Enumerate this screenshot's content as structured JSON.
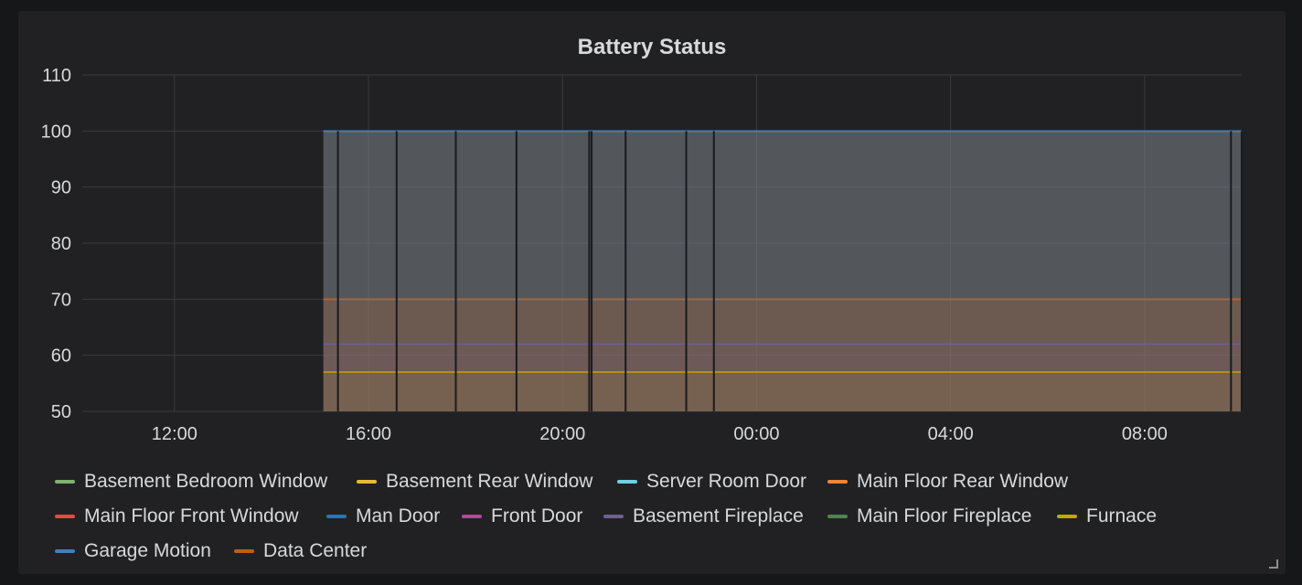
{
  "panel": {
    "title": "Battery Status"
  },
  "chart_data": {
    "type": "area",
    "title": "Battery Status",
    "xlabel": "",
    "ylabel": "",
    "x_ticks": [
      "12:00",
      "16:00",
      "20:00",
      "00:00",
      "04:00",
      "08:00"
    ],
    "x_tick_hours": [
      12,
      16,
      20,
      24,
      28,
      32
    ],
    "x_range_hours": [
      10.1,
      34.0
    ],
    "data_start_hour": 15.07,
    "ylim": [
      50,
      110
    ],
    "y_ticks": [
      50,
      60,
      70,
      80,
      90,
      100,
      110
    ],
    "grid": true,
    "legend_position": "bottom",
    "gaps_hours": [
      15.37,
      16.58,
      17.8,
      19.05,
      20.55,
      20.6,
      21.3,
      22.55,
      23.12,
      33.78,
      34.0
    ],
    "series": [
      {
        "name": "Basement Bedroom Window",
        "color": "#7eb26d",
        "value": 100
      },
      {
        "name": "Basement Rear Window",
        "color": "#eab839",
        "value": 100
      },
      {
        "name": "Server Room Door",
        "color": "#6ed0e0",
        "value": 100
      },
      {
        "name": "Main Floor Rear Window",
        "color": "#ef843c",
        "value": 70
      },
      {
        "name": "Main Floor Front Window",
        "color": "#e24d42",
        "value": 100
      },
      {
        "name": "Man Door",
        "color": "#1f78c1",
        "value": 100
      },
      {
        "name": "Front Door",
        "color": "#ba43a9",
        "value": 100
      },
      {
        "name": "Basement Fireplace",
        "color": "#705da0",
        "value": 62
      },
      {
        "name": "Main Floor Fireplace",
        "color": "#508642",
        "value": 100
      },
      {
        "name": "Furnace",
        "color": "#cca300",
        "value": 57
      },
      {
        "name": "Garage Motion",
        "color": "#447ebc",
        "value": 100
      },
      {
        "name": "Data Center",
        "color": "#c15c17",
        "value": 70
      }
    ]
  }
}
